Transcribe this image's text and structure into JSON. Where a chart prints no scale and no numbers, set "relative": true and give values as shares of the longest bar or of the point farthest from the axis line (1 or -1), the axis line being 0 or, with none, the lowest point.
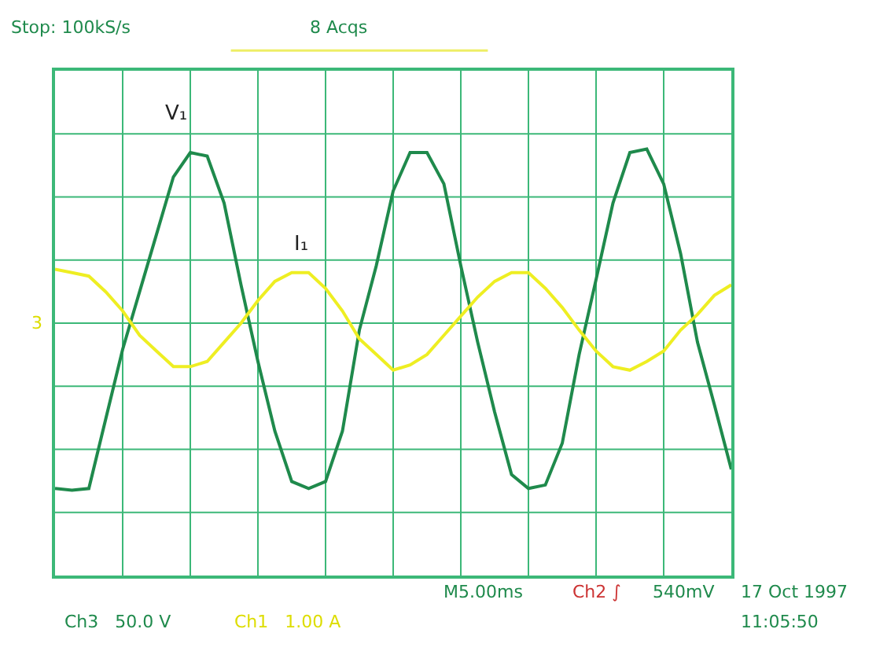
{
  "chart_data": {
    "type": "line",
    "relative": true,
    "grid": true,
    "legend": false,
    "marker": "none",
    "line_style": "solid",
    "categories": [
      null,
      null,
      null,
      null,
      null,
      null,
      null,
      null,
      null,
      null,
      null,
      null,
      null,
      null,
      null,
      null,
      null,
      null,
      null,
      null,
      null,
      null,
      null,
      null,
      null,
      null,
      null,
      null,
      null,
      null,
      null,
      null,
      null,
      null,
      null,
      null,
      null,
      null,
      null,
      null,
      null
    ],
    "series": [
      {
        "name": "V₁",
        "color": "#1f8a4c",
        "values": [
          -0.95,
          -0.96,
          -0.95,
          -0.55,
          -0.15,
          0.18,
          0.51,
          0.84,
          0.98,
          0.96,
          0.69,
          0.22,
          -0.22,
          -0.62,
          -0.91,
          -0.95,
          -0.91,
          -0.62,
          -0.04,
          0.33,
          0.76,
          0.98,
          0.98,
          0.8,
          0.33,
          -0.11,
          -0.51,
          -0.87,
          -0.95,
          -0.93,
          -0.69,
          -0.18,
          0.25,
          0.69,
          0.98,
          1,
          0.8,
          0.4,
          -0.11,
          -0.47,
          -0.84
        ]
      },
      {
        "name": "I₁",
        "color": "#eeee22",
        "values": [
          0.31,
          0.29,
          0.27,
          0.18,
          0.07,
          -0.07,
          -0.16,
          -0.25,
          -0.25,
          -0.22,
          -0.11,
          0,
          0.13,
          0.24,
          0.29,
          0.29,
          0.2,
          0.07,
          -0.09,
          -0.18,
          -0.27,
          -0.24,
          -0.18,
          -0.07,
          0.04,
          0.15,
          0.24,
          0.29,
          0.29,
          0.2,
          0.09,
          -0.04,
          -0.16,
          -0.25,
          -0.27,
          -0.22,
          -0.16,
          -0.04,
          0.05,
          0.16,
          0.22
        ]
      }
    ],
    "annotations": [
      "Stop: 100kS/s",
      "8 Acqs",
      "3",
      "M5.00ms",
      "Ch2 ∫",
      "540mV",
      "17 Oct 1997",
      "11:05:50",
      "Ch3   50.0 V",
      "Ch1   1.00 A"
    ]
  }
}
